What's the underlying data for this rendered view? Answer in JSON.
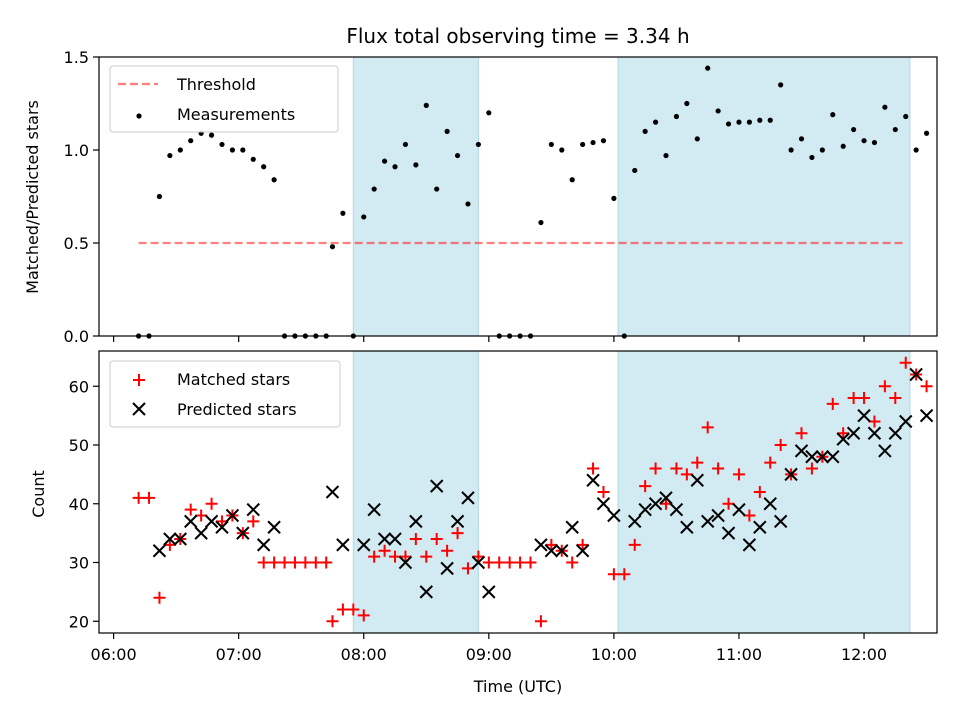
{
  "figure_title": "Flux total observing time = 3.34 h",
  "colors": {
    "shade": "#add8e6",
    "threshold": "#ff0000",
    "measurement": "#000000",
    "matched": "#ff0000",
    "predicted": "#000000"
  },
  "shaded_intervals": [
    {
      "start": "07:55",
      "end": "08:55"
    },
    {
      "start": "10:02",
      "end": "12:22"
    }
  ],
  "chart_data": [
    {
      "type": "scatter",
      "title": "Flux total observing time = 3.34 h",
      "xlabel": "",
      "ylabel": "Matched/Predicted stars",
      "xlim": [
        "05:53",
        "12:35"
      ],
      "ylim": [
        0,
        1.5
      ],
      "yticks": [
        0.0,
        0.5,
        1.0,
        1.5
      ],
      "ytick_labels": [
        "0.0",
        "0.5",
        "1.0",
        "1.5"
      ],
      "grid": false,
      "legend": {
        "position": "top-left",
        "entries": [
          "Threshold",
          "Measurements"
        ]
      },
      "threshold": {
        "name": "Threshold",
        "value": 0.5,
        "x_start": "06:12",
        "x_end": "12:20"
      },
      "series": [
        {
          "name": "Measurements",
          "points": [
            [
              "06:12",
              0
            ],
            [
              "06:17",
              0
            ],
            [
              "06:22",
              0.75
            ],
            [
              "06:27",
              0.97
            ],
            [
              "06:32",
              1.0
            ],
            [
              "06:37",
              1.05
            ],
            [
              "06:42",
              1.09
            ],
            [
              "06:47",
              1.08
            ],
            [
              "06:52",
              1.03
            ],
            [
              "06:57",
              1.0
            ],
            [
              "07:02",
              1.0
            ],
            [
              "07:07",
              0.95
            ],
            [
              "07:12",
              0.91
            ],
            [
              "07:17",
              0.84
            ],
            [
              "07:22",
              0
            ],
            [
              "07:27",
              0
            ],
            [
              "07:32",
              0
            ],
            [
              "07:37",
              0
            ],
            [
              "07:42",
              0
            ],
            [
              "07:45",
              0.48
            ],
            [
              "07:50",
              0.66
            ],
            [
              "07:55",
              0
            ],
            [
              "08:00",
              0.64
            ],
            [
              "08:05",
              0.79
            ],
            [
              "08:10",
              0.94
            ],
            [
              "08:15",
              0.91
            ],
            [
              "08:20",
              1.03
            ],
            [
              "08:25",
              0.92
            ],
            [
              "08:30",
              1.24
            ],
            [
              "08:35",
              0.79
            ],
            [
              "08:40",
              1.1
            ],
            [
              "08:45",
              0.97
            ],
            [
              "08:50",
              0.71
            ],
            [
              "08:55",
              1.03
            ],
            [
              "09:00",
              1.2
            ],
            [
              "09:05",
              0
            ],
            [
              "09:10",
              0
            ],
            [
              "09:15",
              0
            ],
            [
              "09:20",
              0
            ],
            [
              "09:25",
              0.61
            ],
            [
              "09:30",
              1.03
            ],
            [
              "09:35",
              1.0
            ],
            [
              "09:40",
              0.84
            ],
            [
              "09:45",
              1.03
            ],
            [
              "09:50",
              1.04
            ],
            [
              "09:55",
              1.05
            ],
            [
              "10:00",
              0.74
            ],
            [
              "10:05",
              0
            ],
            [
              "10:10",
              0.89
            ],
            [
              "10:15",
              1.1
            ],
            [
              "10:20",
              1.15
            ],
            [
              "10:25",
              0.97
            ],
            [
              "10:30",
              1.18
            ],
            [
              "10:35",
              1.25
            ],
            [
              "10:40",
              1.06
            ],
            [
              "10:45",
              1.44
            ],
            [
              "10:50",
              1.21
            ],
            [
              "10:55",
              1.14
            ],
            [
              "11:00",
              1.15
            ],
            [
              "11:05",
              1.15
            ],
            [
              "11:10",
              1.16
            ],
            [
              "11:15",
              1.16
            ],
            [
              "11:20",
              1.35
            ],
            [
              "11:25",
              1.0
            ],
            [
              "11:30",
              1.06
            ],
            [
              "11:35",
              0.96
            ],
            [
              "11:40",
              1.0
            ],
            [
              "11:45",
              1.19
            ],
            [
              "11:50",
              1.02
            ],
            [
              "11:55",
              1.11
            ],
            [
              "12:00",
              1.05
            ],
            [
              "12:05",
              1.04
            ],
            [
              "12:10",
              1.23
            ],
            [
              "12:15",
              1.11
            ],
            [
              "12:20",
              1.18
            ],
            [
              "12:25",
              1.0
            ],
            [
              "12:30",
              1.09
            ]
          ]
        }
      ]
    },
    {
      "type": "scatter",
      "title": "",
      "xlabel": "Time (UTC)",
      "ylabel": "Count",
      "xlim": [
        "05:53",
        "12:35"
      ],
      "ylim": [
        18,
        66
      ],
      "yticks": [
        20,
        30,
        40,
        50,
        60
      ],
      "ytick_labels": [
        "20",
        "30",
        "40",
        "50",
        "60"
      ],
      "xticks": [
        "06:00",
        "07:00",
        "08:00",
        "09:00",
        "10:00",
        "11:00",
        "12:00"
      ],
      "xtick_labels": [
        "06:00",
        "07:00",
        "08:00",
        "09:00",
        "10:00",
        "11:00",
        "12:00"
      ],
      "grid": false,
      "legend": {
        "position": "top-left",
        "entries": [
          "Matched stars",
          "Predicted stars"
        ]
      },
      "series": [
        {
          "name": "Matched stars",
          "points": [
            [
              "06:12",
              41
            ],
            [
              "06:17",
              41
            ],
            [
              "06:22",
              24
            ],
            [
              "06:27",
              33
            ],
            [
              "06:32",
              34
            ],
            [
              "06:37",
              39
            ],
            [
              "06:42",
              38
            ],
            [
              "06:47",
              40
            ],
            [
              "06:52",
              37
            ],
            [
              "06:57",
              38
            ],
            [
              "07:02",
              35
            ],
            [
              "07:07",
              37
            ],
            [
              "07:12",
              30
            ],
            [
              "07:17",
              30
            ],
            [
              "07:22",
              30
            ],
            [
              "07:27",
              30
            ],
            [
              "07:32",
              30
            ],
            [
              "07:37",
              30
            ],
            [
              "07:42",
              30
            ],
            [
              "07:45",
              20
            ],
            [
              "07:50",
              22
            ],
            [
              "07:55",
              22
            ],
            [
              "08:00",
              21
            ],
            [
              "08:05",
              31
            ],
            [
              "08:10",
              32
            ],
            [
              "08:15",
              31
            ],
            [
              "08:20",
              31
            ],
            [
              "08:25",
              34
            ],
            [
              "08:30",
              31
            ],
            [
              "08:35",
              34
            ],
            [
              "08:40",
              32
            ],
            [
              "08:45",
              35
            ],
            [
              "08:50",
              29
            ],
            [
              "08:55",
              31
            ],
            [
              "09:00",
              30
            ],
            [
              "09:05",
              30
            ],
            [
              "09:10",
              30
            ],
            [
              "09:15",
              30
            ],
            [
              "09:20",
              30
            ],
            [
              "09:25",
              20
            ],
            [
              "09:30",
              33
            ],
            [
              "09:35",
              32
            ],
            [
              "09:40",
              30
            ],
            [
              "09:45",
              33
            ],
            [
              "09:50",
              46
            ],
            [
              "09:55",
              42
            ],
            [
              "10:00",
              28
            ],
            [
              "10:05",
              28
            ],
            [
              "10:10",
              33
            ],
            [
              "10:15",
              43
            ],
            [
              "10:20",
              46
            ],
            [
              "10:25",
              40
            ],
            [
              "10:30",
              46
            ],
            [
              "10:35",
              45
            ],
            [
              "10:40",
              47
            ],
            [
              "10:45",
              53
            ],
            [
              "10:50",
              46
            ],
            [
              "10:55",
              40
            ],
            [
              "11:00",
              45
            ],
            [
              "11:05",
              38
            ],
            [
              "11:10",
              42
            ],
            [
              "11:15",
              47
            ],
            [
              "11:20",
              50
            ],
            [
              "11:25",
              45
            ],
            [
              "11:30",
              52
            ],
            [
              "11:35",
              46
            ],
            [
              "11:40",
              48
            ],
            [
              "11:45",
              57
            ],
            [
              "11:50",
              52
            ],
            [
              "11:55",
              58
            ],
            [
              "12:00",
              58
            ],
            [
              "12:05",
              54
            ],
            [
              "12:10",
              60
            ],
            [
              "12:15",
              58
            ],
            [
              "12:20",
              64
            ],
            [
              "12:25",
              62
            ],
            [
              "12:30",
              60
            ]
          ]
        },
        {
          "name": "Predicted stars",
          "points": [
            [
              "06:22",
              32
            ],
            [
              "06:27",
              34
            ],
            [
              "06:32",
              34
            ],
            [
              "06:37",
              37
            ],
            [
              "06:42",
              35
            ],
            [
              "06:47",
              37
            ],
            [
              "06:52",
              36
            ],
            [
              "06:57",
              38
            ],
            [
              "07:02",
              35
            ],
            [
              "07:07",
              39
            ],
            [
              "07:12",
              33
            ],
            [
              "07:17",
              36
            ],
            [
              "07:45",
              42
            ],
            [
              "07:50",
              33
            ],
            [
              "08:00",
              33
            ],
            [
              "08:05",
              39
            ],
            [
              "08:10",
              34
            ],
            [
              "08:15",
              34
            ],
            [
              "08:20",
              30
            ],
            [
              "08:25",
              37
            ],
            [
              "08:30",
              25
            ],
            [
              "08:35",
              43
            ],
            [
              "08:40",
              29
            ],
            [
              "08:45",
              37
            ],
            [
              "08:50",
              41
            ],
            [
              "08:55",
              30
            ],
            [
              "09:00",
              25
            ],
            [
              "09:25",
              33
            ],
            [
              "09:30",
              32
            ],
            [
              "09:35",
              32
            ],
            [
              "09:40",
              36
            ],
            [
              "09:45",
              32
            ],
            [
              "09:50",
              44
            ],
            [
              "09:55",
              40
            ],
            [
              "10:00",
              38
            ],
            [
              "10:10",
              37
            ],
            [
              "10:15",
              39
            ],
            [
              "10:20",
              40
            ],
            [
              "10:25",
              41
            ],
            [
              "10:30",
              39
            ],
            [
              "10:35",
              36
            ],
            [
              "10:40",
              44
            ],
            [
              "10:45",
              37
            ],
            [
              "10:50",
              38
            ],
            [
              "10:55",
              35
            ],
            [
              "11:00",
              39
            ],
            [
              "11:05",
              33
            ],
            [
              "11:10",
              36
            ],
            [
              "11:15",
              40
            ],
            [
              "11:20",
              37
            ],
            [
              "11:25",
              45
            ],
            [
              "11:30",
              49
            ],
            [
              "11:35",
              48
            ],
            [
              "11:40",
              48
            ],
            [
              "11:45",
              48
            ],
            [
              "11:50",
              51
            ],
            [
              "11:55",
              52
            ],
            [
              "12:00",
              55
            ],
            [
              "12:05",
              52
            ],
            [
              "12:10",
              49
            ],
            [
              "12:15",
              52
            ],
            [
              "12:20",
              54
            ],
            [
              "12:25",
              62
            ],
            [
              "12:30",
              55
            ]
          ]
        }
      ]
    }
  ]
}
